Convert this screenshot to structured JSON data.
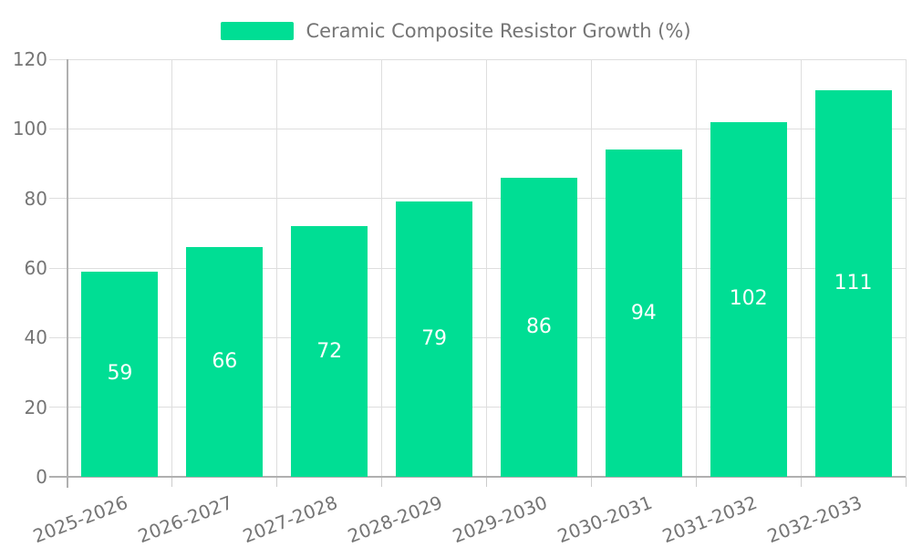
{
  "colors": {
    "bar": "#00de94",
    "grid": "#dedede",
    "boundary_tick": "#cccccc",
    "axis": "#b0b0b0",
    "text": "#757575",
    "value_text": "#ffffff",
    "background": "#ffffff"
  },
  "chart_data": {
    "type": "bar",
    "title": "Ceramic Composite Resistor Growth (%)",
    "legend": {
      "position": "top",
      "entries": [
        {
          "label": "Ceramic Composite Resistor Growth (%)",
          "color": "#00de94"
        }
      ]
    },
    "categories": [
      "2025-2026",
      "2026-2027",
      "2027-2028",
      "2028-2029",
      "2029-2030",
      "2030-2031",
      "2031-2032",
      "2032-2033"
    ],
    "values": [
      59,
      66,
      72,
      79,
      86,
      94,
      102,
      111
    ],
    "xlabel": "",
    "ylabel": "",
    "ylim": [
      0,
      120
    ],
    "yticks": [
      0,
      20,
      40,
      60,
      80,
      100,
      120
    ],
    "grid": true,
    "vertical_category_gridlines": true,
    "value_labels": {
      "position": "inside-center",
      "color": "#ffffff"
    }
  }
}
